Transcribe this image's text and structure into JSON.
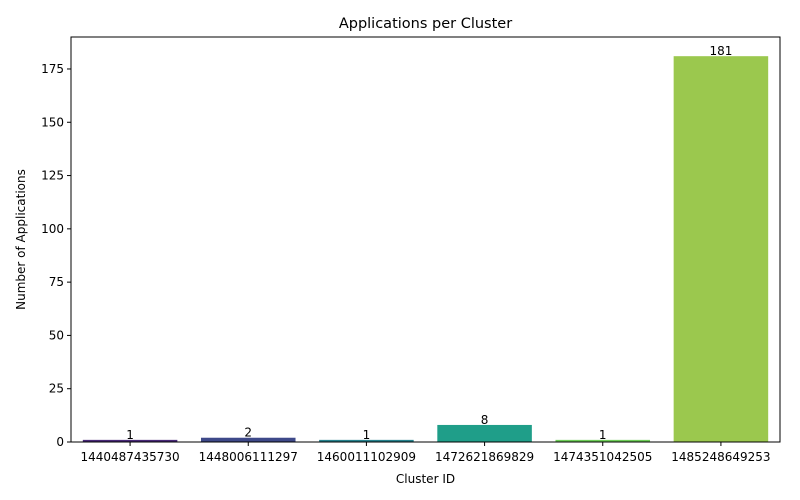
{
  "chart_data": {
    "type": "bar",
    "title": "Applications per Cluster",
    "xlabel": "Cluster ID",
    "ylabel": "Number of Applications",
    "categories": [
      "1440487435730",
      "1448006111297",
      "1460011102909",
      "1472621869829",
      "1474351042505",
      "1485248649253"
    ],
    "values": [
      1,
      2,
      1,
      8,
      1,
      181
    ],
    "data_labels": [
      "1",
      "2",
      "1",
      "8",
      "1",
      "181"
    ],
    "colors": [
      "#482878",
      "#3e4989",
      "#26828e",
      "#1f9e89",
      "#6ece58",
      "#9bc84e"
    ],
    "ylim": [
      0,
      190
    ],
    "yticks": [
      0,
      25,
      50,
      75,
      100,
      125,
      150,
      175
    ],
    "grid": false,
    "legend": "none"
  }
}
